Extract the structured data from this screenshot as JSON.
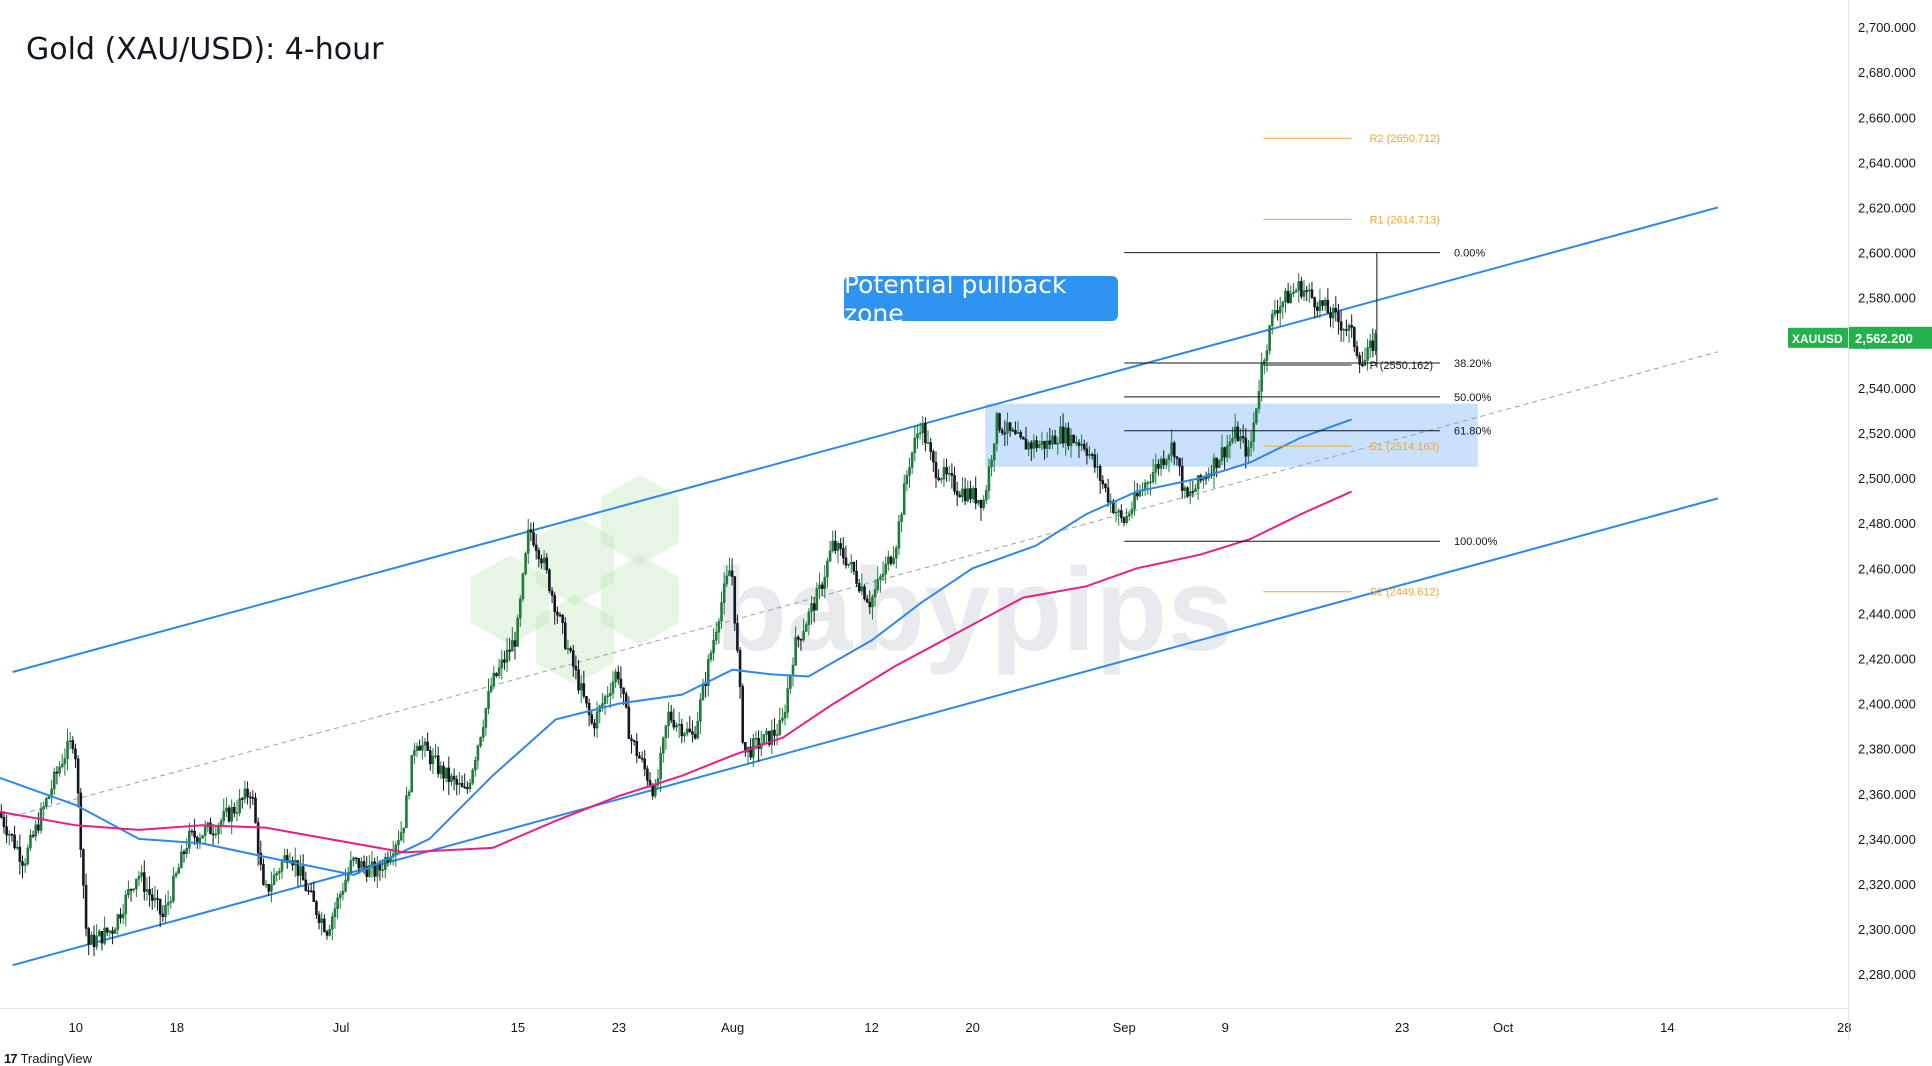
{
  "title": "Gold (XAU/USD): 4-hour",
  "callout": "Potential pullback zone",
  "footer": {
    "brand": "TradingView",
    "logo_icon": "tradingview-logo-icon"
  },
  "watermark": "babypips",
  "colors": {
    "up": "#26a69a",
    "down": "#131722",
    "upBody": "#ffffff",
    "candleUp": "#1e7b3b",
    "candleDown": "#131722",
    "channel": "#2f88e8",
    "sma100": "#2f88e8",
    "sma200": "#e61f87",
    "pivot": "#f5a623",
    "zone": "#bbdafb",
    "price": "#22b14c"
  },
  "chart_data": {
    "type": "candlestick",
    "symbol": "XAUUSD",
    "timeframe": "4-hour",
    "last_price": "2,562.200",
    "ylim": [
      2265,
      2712
    ],
    "y_ticks": [
      "2,700.000",
      "2,680.000",
      "2,660.000",
      "2,640.000",
      "2,620.000",
      "2,600.000",
      "2,580.000",
      "2,560.000",
      "2,540.000",
      "2,520.000",
      "2,500.000",
      "2,480.000",
      "2,460.000",
      "2,440.000",
      "2,420.000",
      "2,400.000",
      "2,380.000",
      "2,360.000",
      "2,340.000",
      "2,320.000",
      "2,300.000",
      "2,280.000"
    ],
    "y_tick_values": [
      2700,
      2680,
      2660,
      2640,
      2620,
      2600,
      2580,
      2560,
      2540,
      2520,
      2500,
      2480,
      2460,
      2440,
      2420,
      2400,
      2380,
      2360,
      2340,
      2320,
      2300,
      2280
    ],
    "x_ticks": [
      {
        "label": "10",
        "day": 10
      },
      {
        "label": "18",
        "day": 18
      },
      {
        "label": "Jul",
        "day": 31
      },
      {
        "label": "15",
        "day": 45
      },
      {
        "label": "23",
        "day": 53
      },
      {
        "label": "Aug",
        "day": 62
      },
      {
        "label": "12",
        "day": 73
      },
      {
        "label": "20",
        "day": 81
      },
      {
        "label": "Sep",
        "day": 93
      },
      {
        "label": "9",
        "day": 101
      },
      {
        "label": "23",
        "day": 115
      },
      {
        "label": "Oct",
        "day": 123
      },
      {
        "label": "14",
        "day": 136
      },
      {
        "label": "28",
        "day": 150
      }
    ],
    "x_range_days": [
      4,
      150.3
    ],
    "data_end_day": 113,
    "price_path": [
      [
        4,
        2352
      ],
      [
        6,
        2330
      ],
      [
        9,
        2375
      ],
      [
        10,
        2385
      ],
      [
        11,
        2293
      ],
      [
        13,
        2300
      ],
      [
        15,
        2325
      ],
      [
        17,
        2305
      ],
      [
        19,
        2340
      ],
      [
        21,
        2345
      ],
      [
        23,
        2355
      ],
      [
        24,
        2362
      ],
      [
        25,
        2315
      ],
      [
        27,
        2335
      ],
      [
        29,
        2310
      ],
      [
        30,
        2300
      ],
      [
        32,
        2330
      ],
      [
        34,
        2325
      ],
      [
        36,
        2345
      ],
      [
        37,
        2385
      ],
      [
        39,
        2370
      ],
      [
        41,
        2360
      ],
      [
        43,
        2408
      ],
      [
        45,
        2430
      ],
      [
        46,
        2478
      ],
      [
        47,
        2465
      ],
      [
        49,
        2425
      ],
      [
        51,
        2390
      ],
      [
        53,
        2415
      ],
      [
        54,
        2385
      ],
      [
        56,
        2360
      ],
      [
        57,
        2395
      ],
      [
        59,
        2385
      ],
      [
        60,
        2412
      ],
      [
        61,
        2440
      ],
      [
        62,
        2462
      ],
      [
        63,
        2378
      ],
      [
        65,
        2385
      ],
      [
        66,
        2390
      ],
      [
        67,
        2425
      ],
      [
        69,
        2450
      ],
      [
        70,
        2470
      ],
      [
        71,
        2465
      ],
      [
        73,
        2445
      ],
      [
        75,
        2470
      ],
      [
        76,
        2505
      ],
      [
        77,
        2525
      ],
      [
        78,
        2505
      ],
      [
        80,
        2495
      ],
      [
        82,
        2490
      ],
      [
        83,
        2525
      ],
      [
        85,
        2515
      ],
      [
        87,
        2515
      ],
      [
        88,
        2520
      ],
      [
        90,
        2515
      ],
      [
        92,
        2490
      ],
      [
        93,
        2480
      ],
      [
        95,
        2500
      ],
      [
        97,
        2515
      ],
      [
        98,
        2490
      ],
      [
        100,
        2505
      ],
      [
        102,
        2520
      ],
      [
        103,
        2510
      ],
      [
        104,
        2550
      ],
      [
        105,
        2575
      ],
      [
        107,
        2585
      ],
      [
        108,
        2580
      ],
      [
        109,
        2575
      ],
      [
        110,
        2570
      ],
      [
        111,
        2565
      ],
      [
        112,
        2550
      ],
      [
        113,
        2562
      ]
    ],
    "candle_count": 520,
    "channel_upper": [
      [
        5,
        2414
      ],
      [
        140,
        2620
      ]
    ],
    "channel_lower": [
      [
        5,
        2284
      ],
      [
        140,
        2491
      ]
    ],
    "midline": [
      [
        5,
        2350
      ],
      [
        140,
        2556
      ]
    ],
    "sma100_path": [
      [
        4,
        2367
      ],
      [
        10,
        2355
      ],
      [
        15,
        2340
      ],
      [
        20,
        2338
      ],
      [
        25,
        2332
      ],
      [
        32,
        2324
      ],
      [
        38,
        2340
      ],
      [
        43,
        2368
      ],
      [
        48,
        2393
      ],
      [
        53,
        2400
      ],
      [
        58,
        2404
      ],
      [
        62,
        2415
      ],
      [
        65,
        2413
      ],
      [
        68,
        2412
      ],
      [
        73,
        2428
      ],
      [
        77,
        2445
      ],
      [
        81,
        2460
      ],
      [
        86,
        2470
      ],
      [
        90,
        2484
      ],
      [
        94,
        2494
      ],
      [
        99,
        2500
      ],
      [
        103,
        2507
      ],
      [
        107,
        2518
      ],
      [
        111,
        2526
      ]
    ],
    "sma200_path": [
      [
        4,
        2352
      ],
      [
        10,
        2346
      ],
      [
        15,
        2344
      ],
      [
        20,
        2346
      ],
      [
        25,
        2345
      ],
      [
        30,
        2340
      ],
      [
        36,
        2334
      ],
      [
        43,
        2336
      ],
      [
        48,
        2348
      ],
      [
        53,
        2359
      ],
      [
        58,
        2368
      ],
      [
        62,
        2377
      ],
      [
        66,
        2385
      ],
      [
        70,
        2400
      ],
      [
        75,
        2417
      ],
      [
        80,
        2432
      ],
      [
        85,
        2447
      ],
      [
        90,
        2452
      ],
      [
        94,
        2460
      ],
      [
        99,
        2466
      ],
      [
        103,
        2473
      ],
      [
        107,
        2484
      ],
      [
        111,
        2494
      ]
    ],
    "zone": {
      "x": [
        82,
        121
      ],
      "y": [
        2505,
        2533
      ]
    },
    "fibonacci": {
      "x": [
        93,
        118
      ],
      "levels": [
        {
          "label": "0.00%",
          "value": 2600
        },
        {
          "label": "38.20%",
          "value": 2551
        },
        {
          "label": "50.00%",
          "value": 2536
        },
        {
          "label": "61.80%",
          "value": 2521
        },
        {
          "label": "100.00%",
          "value": 2472
        }
      ]
    },
    "pivots": [
      {
        "label": "R2 (2650.712)",
        "value": 2650.712
      },
      {
        "label": "R1 (2614.713)",
        "value": 2614.713
      },
      {
        "label": "P (2550.162)",
        "value": 2550.162
      },
      {
        "label": "S1 (2514.163)",
        "value": 2514.163
      },
      {
        "label": "S2 (2449.612)",
        "value": 2449.612
      }
    ],
    "pivot_x": [
      104,
      111
    ]
  }
}
